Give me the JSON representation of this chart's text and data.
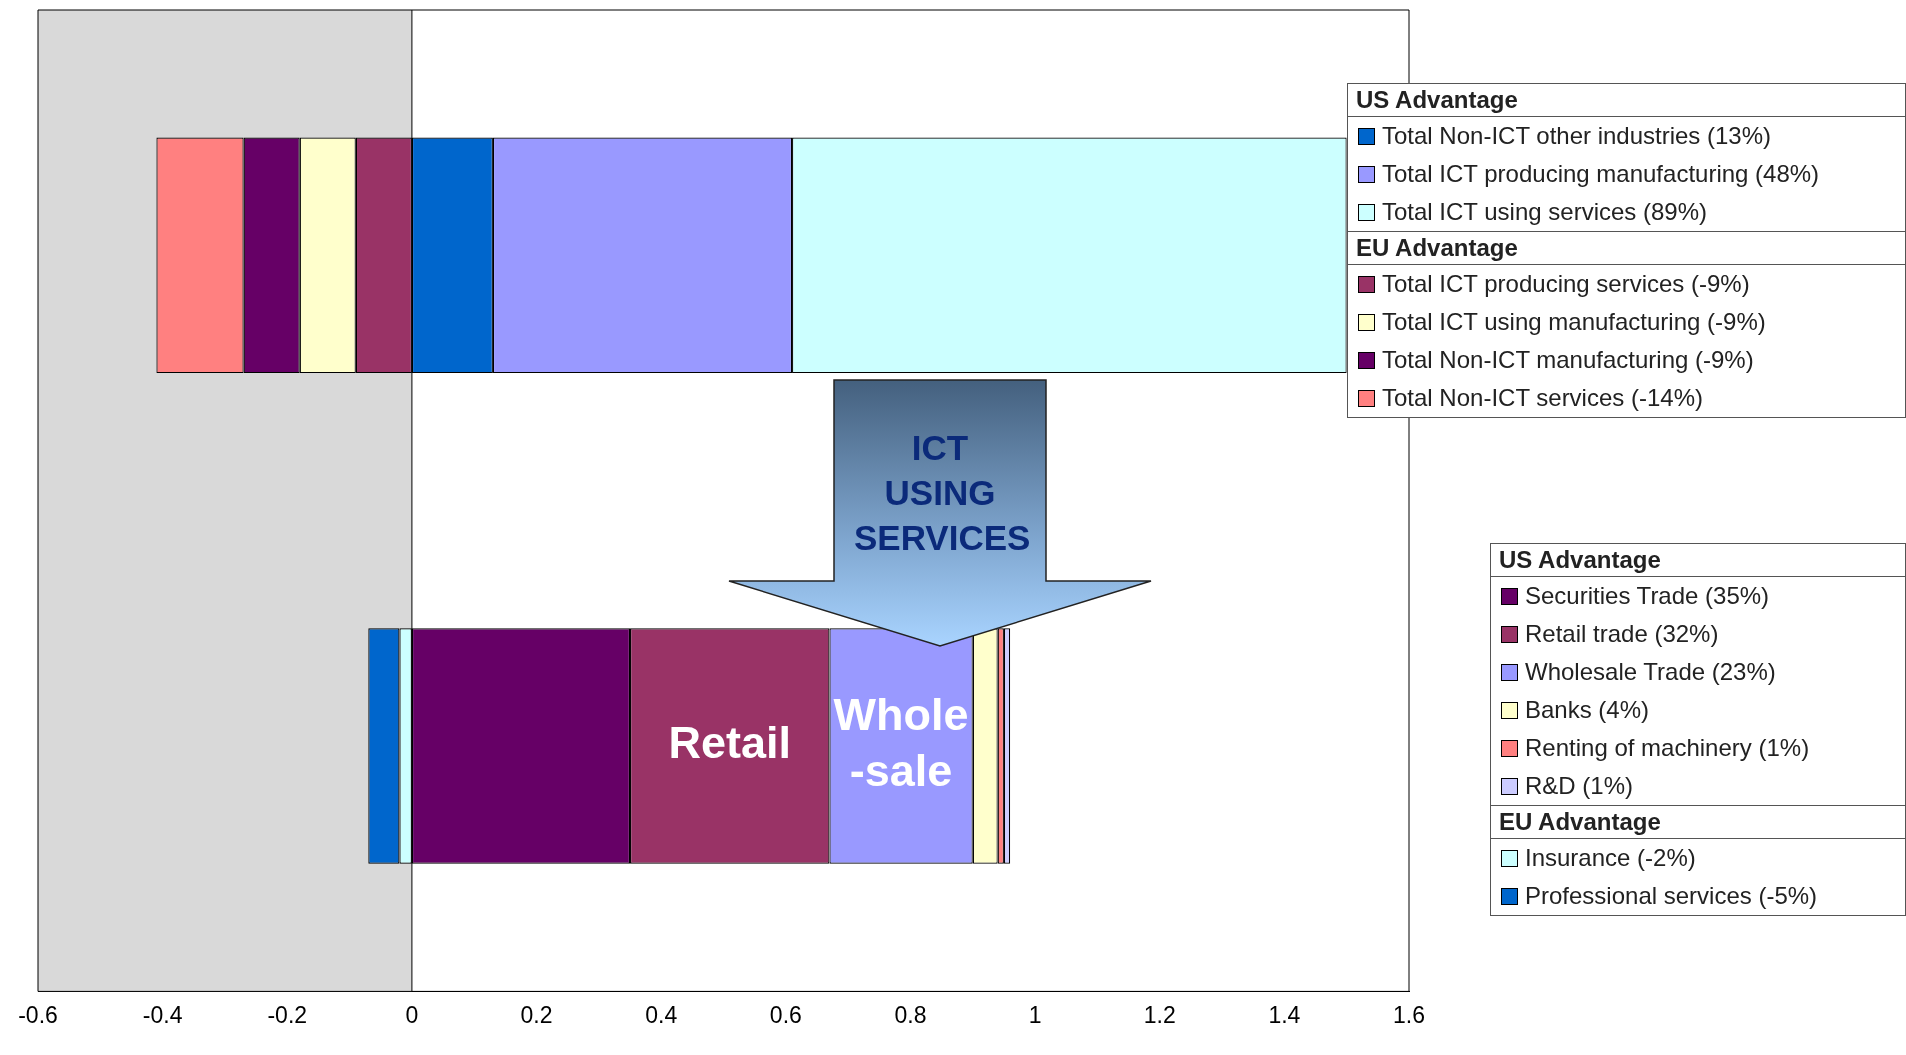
{
  "chart_data": {
    "type": "bar",
    "orientation": "horizontal",
    "stacked": true,
    "categories": [
      null,
      null
    ],
    "series": [
      {
        "name": "Total Non-ICT other industries (13%)",
        "color": "#0066cc",
        "values": [
          0.13,
          null
        ]
      },
      {
        "name": "Total ICT producing manufacturing (48%)",
        "color": "#9999ff",
        "values": [
          0.48,
          null
        ]
      },
      {
        "name": "Total ICT using services (89%)",
        "color": "#ccffff",
        "values": [
          0.89,
          null
        ]
      },
      {
        "name": "Total ICT producing services (-9%)",
        "color": "#993366",
        "values": [
          -0.09,
          null
        ]
      },
      {
        "name": "Total ICT using manufacturing (-9%)",
        "color": "#ffffcc",
        "values": [
          -0.09,
          null
        ]
      },
      {
        "name": "Total Non-ICT manufacturing (-9%)",
        "color": "#660066",
        "values": [
          -0.09,
          null
        ]
      },
      {
        "name": "Total Non-ICT services (-14%)",
        "color": "#ff8080",
        "values": [
          -0.14,
          null
        ]
      },
      {
        "name": "Securities Trade (35%)",
        "color": "#660066",
        "values": [
          null,
          0.35
        ]
      },
      {
        "name": "Retail trade (32%)",
        "color": "#993366",
        "values": [
          null,
          0.32
        ]
      },
      {
        "name": "Wholesale Trade (23%)",
        "color": "#9999ff",
        "values": [
          null,
          0.23
        ]
      },
      {
        "name": "Banks (4%)",
        "color": "#ffffcc",
        "values": [
          null,
          0.04
        ]
      },
      {
        "name": "Renting of machinery (1%)",
        "color": "#ff8080",
        "values": [
          null,
          0.01
        ]
      },
      {
        "name": "R&D (1%)",
        "color": "#ccccff",
        "values": [
          null,
          0.01
        ]
      },
      {
        "name": "Insurance (-2%)",
        "color": "#ccffff",
        "values": [
          null,
          -0.02
        ]
      },
      {
        "name": "Professional services (-5%)",
        "color": "#0066cc",
        "values": [
          null,
          -0.05
        ]
      }
    ],
    "xlim": [
      -0.6,
      1.6
    ],
    "xticks": [
      -0.6,
      -0.4,
      -0.2,
      0,
      0.2,
      0.4,
      0.6,
      0.8,
      1,
      1.2,
      1.4,
      1.6
    ],
    "bands": [
      {
        "axis": "x",
        "from": -0.6,
        "to": 0,
        "color": "#d9d9d9"
      }
    ],
    "ref_lines": [
      {
        "axis": "x",
        "value": 0,
        "color": "#000000"
      }
    ],
    "annotations": [
      "US Advantage",
      "EU Advantage",
      "US Advantage",
      "EU Advantage",
      "ICT USING SERVICES",
      "Retail",
      "Whole-sale"
    ],
    "legend": "right",
    "tick_labels": "x",
    "grid": false
  }
}
